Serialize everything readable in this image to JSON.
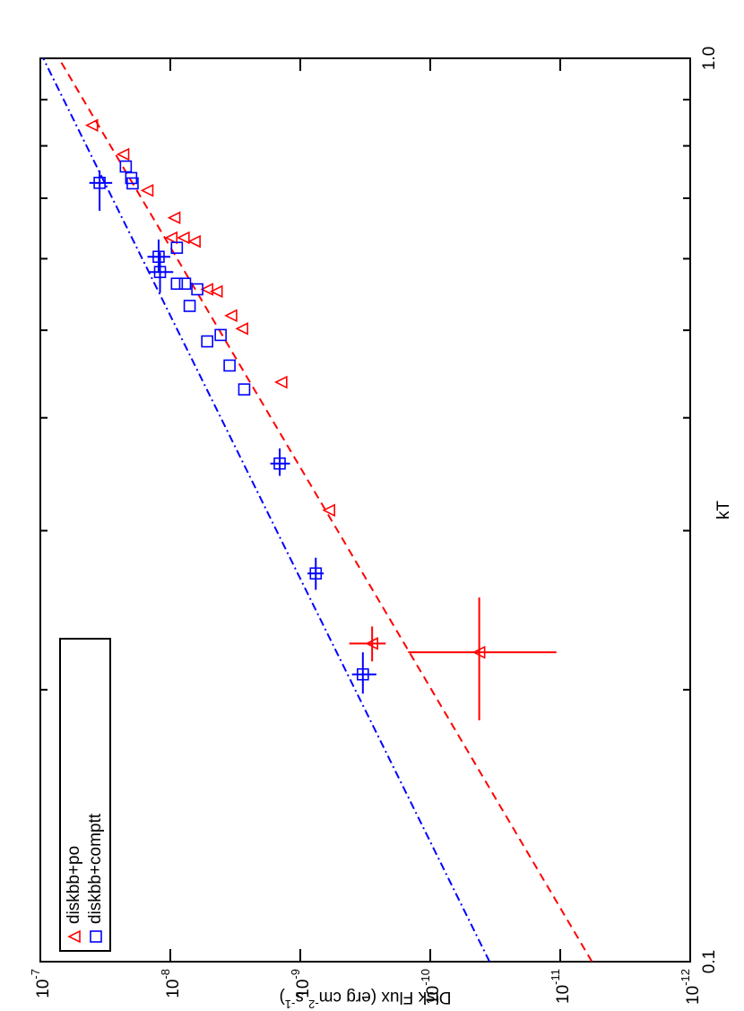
{
  "chart_data": {
    "type": "scatter",
    "xlabel": "kT",
    "ylabel": [
      "Disk Flux (erg cm",
      "-2",
      " s",
      "-1",
      ")"
    ],
    "xlog": true,
    "ylog": true,
    "xlim": [
      0.1,
      1.0
    ],
    "ylim": [
      1e-12,
      1e-07
    ],
    "xticks": [
      {
        "value": 0.1,
        "label": "0.1"
      },
      {
        "value": 1.0,
        "label": "1.0"
      }
    ],
    "xminor": [
      0.2,
      0.3,
      0.4,
      0.5,
      0.6,
      0.7,
      0.8,
      0.9
    ],
    "yticks": [
      {
        "value": 1e-12,
        "label": "10",
        "sup": "-12"
      },
      {
        "value": 1e-11,
        "label": "10",
        "sup": "-11"
      },
      {
        "value": 1e-10,
        "label": "10",
        "sup": "-10"
      },
      {
        "value": 1e-09,
        "label": "10",
        "sup": "-9"
      },
      {
        "value": 1e-08,
        "label": "10",
        "sup": "-8"
      },
      {
        "value": 1e-07,
        "label": "10",
        "sup": "-7"
      }
    ],
    "legend": "top-left",
    "series": [
      {
        "name": "diskbb+po",
        "color": "#ff0000",
        "marker": "triangle",
        "x": [
          0.843,
          0.783,
          0.714,
          0.666,
          0.633,
          0.633,
          0.627,
          0.555,
          0.552,
          0.519,
          0.502,
          0.438,
          0.316,
          0.225,
          0.22
        ],
        "values": [
          4e-08,
          2.3e-08,
          1.5e-08,
          9.3e-09,
          9.8e-09,
          7.9e-09,
          6.5e-09,
          5.2e-09,
          4.4e-09,
          3.4e-09,
          2.8e-09,
          1.4e-09,
          6e-10,
          2.8e-10,
          4.2e-11
        ],
        "x_lo": [
          null,
          null,
          null,
          null,
          null,
          null,
          null,
          null,
          null,
          null,
          null,
          null,
          null,
          0.215,
          0.185
        ],
        "x_hi": [
          null,
          null,
          null,
          null,
          null,
          null,
          null,
          null,
          null,
          null,
          null,
          null,
          null,
          0.235,
          0.253
        ],
        "y_lo": [
          null,
          null,
          null,
          null,
          null,
          null,
          null,
          null,
          null,
          null,
          null,
          null,
          null,
          2.2e-10,
          1.07e-11
        ],
        "y_hi": [
          null,
          null,
          null,
          null,
          null,
          null,
          null,
          null,
          null,
          null,
          null,
          null,
          null,
          4.2e-10,
          1.48e-10
        ]
      },
      {
        "name": "diskbb+comptt",
        "color": "#0000ff",
        "marker": "square",
        "x": [
          0.728,
          0.759,
          0.737,
          0.727,
          0.603,
          0.58,
          0.617,
          0.563,
          0.563,
          0.555,
          0.532,
          0.486,
          0.494,
          0.457,
          0.43,
          0.356,
          0.269,
          0.208
        ],
        "values": [
          3.5e-08,
          2.2e-08,
          2e-08,
          1.95e-08,
          1.23e-08,
          1.2e-08,
          8.9e-09,
          8.9e-09,
          7.7e-09,
          6.2e-09,
          7.1e-09,
          5.2e-09,
          4.1e-09,
          3.5e-09,
          2.7e-09,
          1.44e-09,
          7.6e-10,
          3.3e-10
        ],
        "x_lo": [
          0.678,
          null,
          null,
          null,
          0.58,
          0.55,
          null,
          null,
          null,
          null,
          null,
          null,
          null,
          null,
          null,
          0.345,
          0.258,
          0.198
        ],
        "x_hi": [
          0.751,
          null,
          null,
          null,
          0.63,
          0.61,
          null,
          null,
          null,
          null,
          null,
          null,
          null,
          null,
          null,
          0.37,
          0.28,
          0.22
        ],
        "y_lo": [
          2.8e-08,
          null,
          null,
          null,
          1e-08,
          9.5e-09,
          null,
          null,
          null,
          null,
          null,
          null,
          null,
          null,
          null,
          1.2e-09,
          6.6e-10,
          2.6e-10
        ],
        "y_hi": [
          4.2e-08,
          null,
          null,
          null,
          1.5e-08,
          1.45e-08,
          null,
          null,
          null,
          null,
          null,
          null,
          null,
          null,
          null,
          1.7e-09,
          8.8e-10,
          4e-10
        ]
      }
    ],
    "fits": [
      {
        "color": "#ff0000",
        "dash": "9 6",
        "x": [
          0.1,
          1.0
        ],
        "values": [
          5.7e-12,
          7.2e-08
        ]
      },
      {
        "color": "#0000ff",
        "dash": "9 4 2 4",
        "x": [
          0.1,
          1.0
        ],
        "values": [
          3.5e-11,
          9.5e-08
        ]
      }
    ]
  }
}
